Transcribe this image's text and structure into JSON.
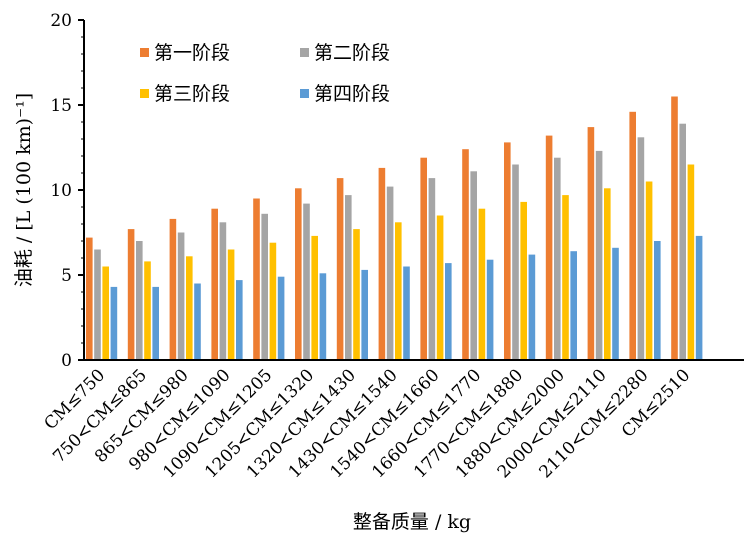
{
  "chart_data": {
    "type": "bar",
    "categories": [
      "CM≤750",
      "750<CM≤865",
      "865<CM≤980",
      "980<CM≤1090",
      "1090<CM≤1205",
      "1205<CM≤1320",
      "1320<CM≤1430",
      "1430<CM≤1540",
      "1540<CM≤1660",
      "1660<CM≤1770",
      "1770<CM≤1880",
      "1880<CM≤2000",
      "2000<CM≤2110",
      "2110<CM≤2280",
      "CM≤2510"
    ],
    "series": [
      {
        "name": "第一阶段",
        "color": "#ED7D31",
        "values": [
          7.2,
          7.7,
          8.3,
          8.9,
          9.5,
          10.1,
          10.7,
          11.3,
          11.9,
          12.4,
          12.8,
          13.2,
          13.7,
          14.6,
          15.5
        ]
      },
      {
        "name": "第二阶段",
        "color": "#A5A5A5",
        "values": [
          6.5,
          7.0,
          7.5,
          8.1,
          8.6,
          9.2,
          9.7,
          10.2,
          10.7,
          11.1,
          11.5,
          11.9,
          12.3,
          13.1,
          13.9
        ]
      },
      {
        "name": "第三阶段",
        "color": "#FFC000",
        "values": [
          5.5,
          5.8,
          6.1,
          6.5,
          6.9,
          7.3,
          7.7,
          8.1,
          8.5,
          8.9,
          9.3,
          9.7,
          10.1,
          10.5,
          11.5
        ]
      },
      {
        "name": "第四阶段",
        "color": "#5B9BD5",
        "values": [
          4.3,
          4.3,
          4.5,
          4.7,
          4.9,
          5.1,
          5.3,
          5.5,
          5.7,
          5.9,
          6.2,
          6.4,
          6.6,
          7.0,
          7.3
        ]
      }
    ],
    "yticks": [
      "0",
      "5",
      "10",
      "15",
      "20"
    ],
    "ylim": [
      0,
      20
    ],
    "xlabel": "整备质量 / kg",
    "ylabel": "油耗 / [L (100 km)⁻¹]",
    "grid": false,
    "legend_position": "top-left"
  }
}
